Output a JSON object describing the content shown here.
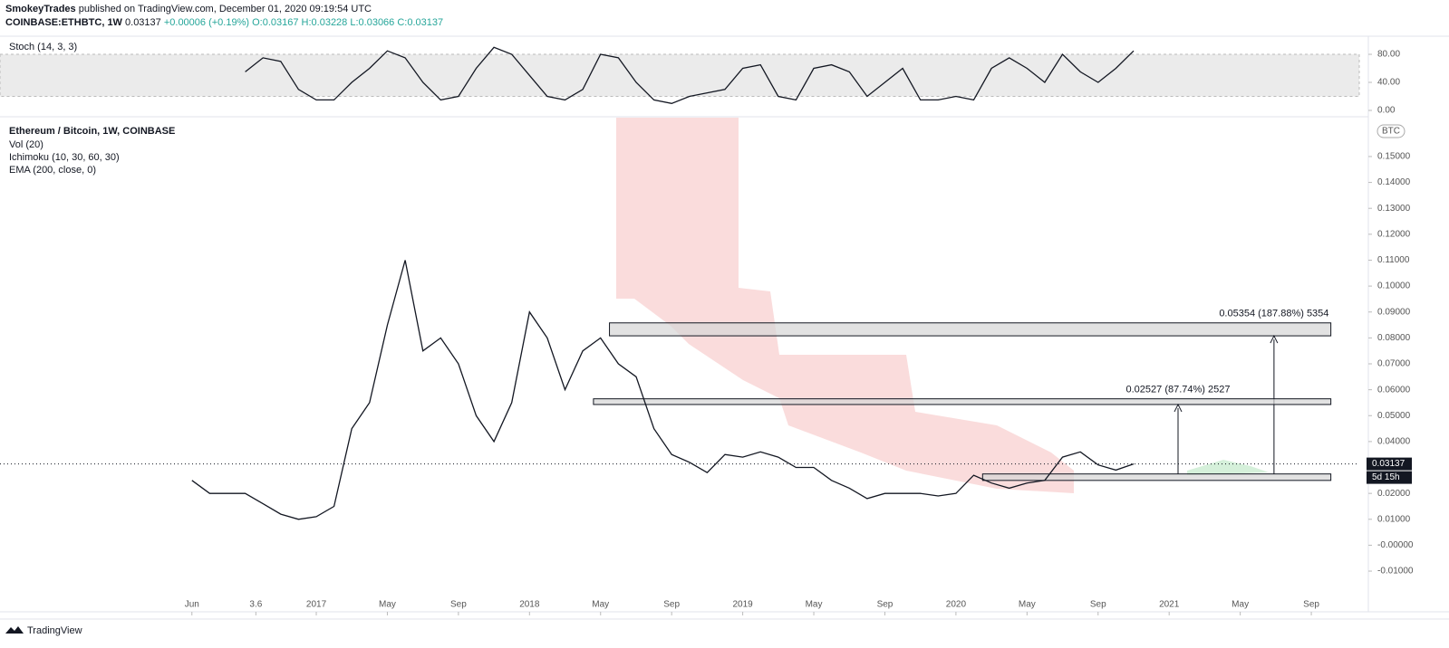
{
  "header": {
    "author": "SmokeyTrades",
    "published": "published on TradingView.com, December 01, 2020 09:19:54 UTC",
    "symbol": "COINBASE:ETHBTC, 1W",
    "change": "+0.00006 (+0.19%)",
    "ohlc": [
      "O:0.03167",
      "H:0.03228",
      "L:0.03066",
      "C:0.03137"
    ],
    "brand": "TradingView"
  },
  "chart_data": [
    {
      "type": "line",
      "title": "Stoch (14, 3, 3)",
      "x": [
        3,
        4,
        5,
        6,
        7,
        8,
        9,
        10,
        11,
        12,
        13,
        14,
        15,
        16,
        17,
        18,
        19,
        20,
        21,
        22,
        23,
        24,
        25,
        26,
        27,
        28,
        29,
        30,
        31,
        32,
        33,
        34,
        35,
        36,
        37,
        38,
        39,
        40,
        41,
        42,
        43,
        44,
        45,
        46,
        47,
        48,
        49,
        50,
        51,
        52,
        53
      ],
      "values": [
        55,
        75,
        70,
        30,
        15,
        15,
        40,
        60,
        85,
        75,
        40,
        15,
        20,
        60,
        90,
        80,
        50,
        20,
        15,
        30,
        80,
        75,
        40,
        15,
        10,
        20,
        25,
        30,
        60,
        65,
        20,
        15,
        60,
        65,
        55,
        20,
        40,
        60,
        15,
        15,
        20,
        15,
        60,
        75,
        60,
        40,
        80,
        55,
        40,
        60,
        85
      ],
      "color": "#131722",
      "band": [
        20,
        80
      ],
      "xlim": [
        -10.8,
        65.7
      ],
      "ylim": [
        0,
        99.4
      ],
      "yticks": [
        {
          "value": 0,
          "label": "0.00"
        },
        {
          "value": 40,
          "label": "40.00"
        },
        {
          "value": 80,
          "label": "80.00"
        }
      ]
    },
    {
      "type": "line",
      "title": "Ethereum / Bitcoin, 1W, COINBASE",
      "indicators": [
        "Vol (20)",
        "Ichimoku (10, 30, 60, 30)",
        "EMA (200, close, 0)"
      ],
      "unit": "BTC",
      "x": [
        0,
        1,
        2,
        3,
        4,
        5,
        6,
        7,
        8,
        9,
        10,
        11,
        12,
        13,
        14,
        15,
        16,
        17,
        18,
        19,
        20,
        21,
        22,
        23,
        24,
        25,
        26,
        27,
        28,
        29,
        30,
        31,
        32,
        33,
        34,
        35,
        36,
        37,
        38,
        39,
        40,
        41,
        42,
        43,
        44,
        45,
        46,
        47,
        48,
        49,
        50,
        51,
        52,
        53
      ],
      "values": [
        0.025,
        0.02,
        0.02,
        0.02,
        0.016,
        0.012,
        0.01,
        0.011,
        0.015,
        0.045,
        0.055,
        0.085,
        0.11,
        0.075,
        0.08,
        0.07,
        0.05,
        0.04,
        0.055,
        0.09,
        0.08,
        0.06,
        0.075,
        0.08,
        0.07,
        0.065,
        0.045,
        0.035,
        0.032,
        0.028,
        0.035,
        0.034,
        0.036,
        0.034,
        0.03,
        0.03,
        0.025,
        0.022,
        0.018,
        0.02,
        0.02,
        0.02,
        0.019,
        0.02,
        0.027,
        0.024,
        0.022,
        0.024,
        0.025,
        0.034,
        0.036,
        0.031,
        0.029,
        0.03137
      ],
      "color": "#131722",
      "last_price": 0.03137,
      "countdown": "5d 15h",
      "xlim": [
        -10.8,
        65.7
      ],
      "ylim": [
        -0.0257,
        0.165
      ],
      "yticks": [
        {
          "value": 0.15,
          "label": "0.15000"
        },
        {
          "value": 0.14,
          "label": "0.14000"
        },
        {
          "value": 0.13,
          "label": "0.13000"
        },
        {
          "value": 0.12,
          "label": "0.12000"
        },
        {
          "value": 0.11,
          "label": "0.11000"
        },
        {
          "value": 0.1,
          "label": "0.10000"
        },
        {
          "value": 0.09,
          "label": "0.09000"
        },
        {
          "value": 0.08,
          "label": "0.08000"
        },
        {
          "value": 0.07,
          "label": "0.07000"
        },
        {
          "value": 0.06,
          "label": "0.06000"
        },
        {
          "value": 0.05,
          "label": "0.05000"
        },
        {
          "value": 0.04,
          "label": "0.04000"
        },
        {
          "value": 0.03,
          "label": "0.03000"
        },
        {
          "value": 0.02,
          "label": "0.02000"
        },
        {
          "value": 0.01,
          "label": "0.01000"
        },
        {
          "value": 0,
          "label": "-0.00000"
        },
        {
          "value": -0.01,
          "label": "-0.01000"
        }
      ],
      "xticks": [
        {
          "value": 0,
          "label": "Jun"
        },
        3.6,
        {
          "value": 7,
          "label": "2017"
        },
        {
          "value": 11,
          "label": "May"
        },
        {
          "value": 15,
          "label": "Sep"
        },
        {
          "value": 19,
          "label": "2018"
        },
        {
          "value": 23,
          "label": "May"
        },
        {
          "value": 27,
          "label": "Sep"
        },
        {
          "value": 31,
          "label": "2019"
        },
        {
          "value": 35,
          "label": "May"
        },
        {
          "value": 39,
          "label": "Sep"
        },
        {
          "value": 43,
          "label": "2020"
        },
        {
          "value": 47,
          "label": "May"
        },
        {
          "value": 51,
          "label": "Sep"
        },
        {
          "value": 55,
          "label": "2021"
        },
        {
          "value": 59,
          "label": "May"
        },
        {
          "value": 63,
          "label": "Sep"
        }
      ],
      "zones": [
        {
          "low": 0.0808,
          "high": 0.0858,
          "x_start": 23.5,
          "x_end": 64.1,
          "arrow_x": 60.9,
          "label": "0.05354 (187.88%) 5354"
        },
        {
          "low": 0.0543,
          "high": 0.0565,
          "x_start": 22.6,
          "x_end": 64.1,
          "arrow_x": 55.5,
          "label": "0.02527 (87.74%) 2527"
        },
        {
          "low": 0.025,
          "high": 0.0275,
          "x_start": 44.5,
          "x_end": 64.1
        }
      ]
    }
  ]
}
